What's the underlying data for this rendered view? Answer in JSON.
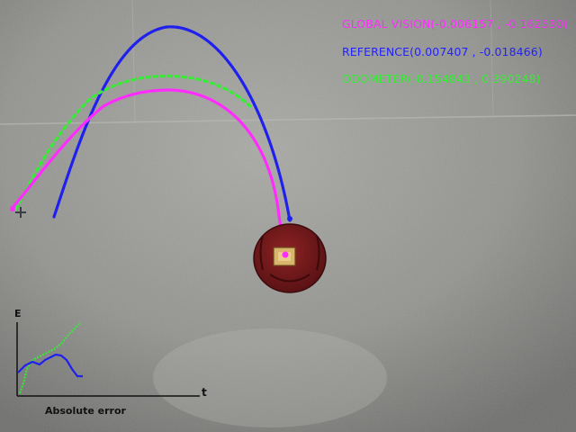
{
  "overlay": {
    "global_vision": {
      "text": "GLOBAL VISION(-0.006157 , -0.162530)",
      "color": "#ff2bff"
    },
    "reference": {
      "text": "REFERENCE(0.007407 , -0.018466)",
      "color": "#2222ff"
    },
    "odometer": {
      "text": "ODOMETER(-0.154843 , 0.390248)",
      "color": "#33ee33"
    }
  },
  "error_plot": {
    "y_axis_label": "E",
    "x_axis_label": "t",
    "title": "Absolute error"
  },
  "colors": {
    "global_vision": "#ff2bff",
    "reference": "#2020ee",
    "odometer": "#33ee33",
    "robot_body": "#7a1a1c",
    "floor": "#8e8f8b"
  },
  "icons": {
    "robot": "robot-top-view",
    "start_marker": "cross-marker"
  }
}
